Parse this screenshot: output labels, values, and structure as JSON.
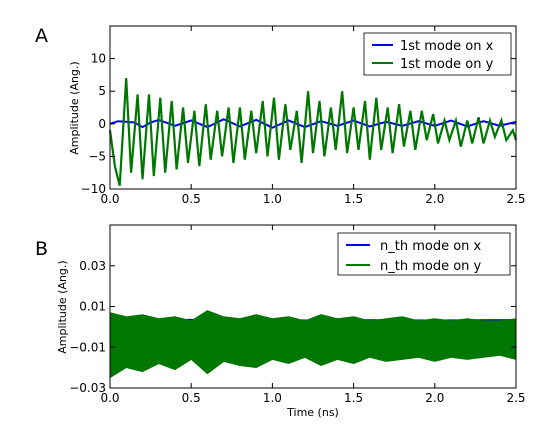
{
  "chart_data": [
    {
      "type": "line",
      "panel_label": "A",
      "title": "",
      "xlabel": "",
      "ylabel": "Amplitude (Ang.)",
      "xlim": [
        0.0,
        2.5
      ],
      "ylim": [
        -10,
        15
      ],
      "x_ticks": [
        0.0,
        0.5,
        1.0,
        1.5,
        2.0,
        2.5
      ],
      "x_tick_labels": [
        "0.0",
        "0.5",
        "1.0",
        "1.5",
        "2.0",
        "2.5"
      ],
      "y_ticks": [
        -10,
        -5,
        0,
        5,
        10
      ],
      "y_tick_labels": [
        "−10",
        "−5",
        "0",
        "5",
        "10"
      ],
      "grid": false,
      "legend_position": "top-right",
      "series": [
        {
          "name": "1st mode on x",
          "color": "#0000ff",
          "x": [
            0.0,
            0.05,
            0.1,
            0.15,
            0.2,
            0.25,
            0.3,
            0.4,
            0.5,
            0.6,
            0.7,
            0.8,
            0.9,
            1.0,
            1.1,
            1.2,
            1.3,
            1.4,
            1.5,
            1.6,
            1.7,
            1.8,
            1.9,
            2.0,
            2.1,
            2.2,
            2.3,
            2.4,
            2.5
          ],
          "values": [
            0.0,
            0.4,
            0.3,
            0.2,
            -0.5,
            0.2,
            0.6,
            -0.3,
            0.5,
            -0.5,
            0.7,
            -0.4,
            0.6,
            -0.6,
            0.5,
            -0.5,
            0.4,
            -0.3,
            0.5,
            -0.4,
            0.3,
            -0.3,
            0.4,
            -0.3,
            0.5,
            -0.4,
            0.4,
            -0.3,
            0.3
          ]
        },
        {
          "name": "1st mode on y",
          "color": "#007700",
          "x": [
            0.0,
            0.03,
            0.06,
            0.1,
            0.13,
            0.17,
            0.2,
            0.24,
            0.27,
            0.31,
            0.34,
            0.38,
            0.41,
            0.45,
            0.48,
            0.52,
            0.55,
            0.59,
            0.62,
            0.66,
            0.69,
            0.73,
            0.76,
            0.8,
            0.83,
            0.87,
            0.9,
            0.94,
            0.97,
            1.01,
            1.04,
            1.08,
            1.11,
            1.15,
            1.18,
            1.22,
            1.25,
            1.29,
            1.32,
            1.36,
            1.39,
            1.43,
            1.46,
            1.5,
            1.53,
            1.57,
            1.6,
            1.64,
            1.67,
            1.71,
            1.74,
            1.78,
            1.81,
            1.85,
            1.88,
            1.92,
            1.95,
            1.99,
            2.02,
            2.06,
            2.09,
            2.13,
            2.16,
            2.2,
            2.23,
            2.27,
            2.3,
            2.34,
            2.37,
            2.41,
            2.44,
            2.48,
            2.5
          ],
          "values": [
            -1.0,
            -6.5,
            -9.5,
            7.0,
            -7.5,
            4.5,
            -8.5,
            4.5,
            -8.0,
            4.0,
            -7.5,
            3.5,
            -7.0,
            2.5,
            -6.0,
            2.0,
            -6.5,
            3.0,
            -5.5,
            2.0,
            -5.0,
            2.5,
            -6.0,
            2.5,
            -5.5,
            2.0,
            -4.5,
            3.5,
            -5.0,
            4.0,
            -5.5,
            3.0,
            -4.0,
            2.0,
            -6.0,
            5.0,
            -4.5,
            3.5,
            -5.0,
            2.5,
            -4.0,
            5.0,
            -4.5,
            2.5,
            -4.0,
            3.5,
            -5.5,
            4.0,
            -4.0,
            2.5,
            -4.5,
            3.0,
            -3.5,
            2.0,
            -4.0,
            2.0,
            -2.5,
            1.5,
            -3.0,
            0.5,
            -2.5,
            0.5,
            -3.5,
            0.5,
            -3.0,
            1.0,
            -3.0,
            0.5,
            -2.0,
            0.5,
            -2.5,
            -1.0,
            -2.5
          ]
        }
      ]
    },
    {
      "type": "line",
      "panel_label": "B",
      "title": "",
      "xlabel": "Time (ns)",
      "ylabel": "Amplitude (Ang.)",
      "xlim": [
        0.0,
        2.5
      ],
      "ylim": [
        -0.03,
        0.05
      ],
      "x_ticks": [
        0.0,
        0.5,
        1.0,
        1.5,
        2.0,
        2.5
      ],
      "x_tick_labels": [
        "0.0",
        "0.5",
        "1.0",
        "1.5",
        "2.0",
        "2.5"
      ],
      "y_ticks": [
        -0.03,
        -0.01,
        0.01,
        0.03
      ],
      "y_tick_labels": [
        "−0.03",
        "−0.01",
        "0.01",
        "0.03"
      ],
      "grid": false,
      "legend_position": "top-right",
      "series": [
        {
          "name": "n_th mode on x",
          "color": "#0000ff",
          "x": [
            0.0,
            0.25,
            0.5,
            0.75,
            1.0,
            1.25,
            1.5,
            1.75,
            2.0,
            2.25,
            2.5
          ],
          "values_upper": [
            0.0035,
            0.0035,
            0.0037,
            0.0033,
            0.0035,
            0.0034,
            0.0036,
            0.0035,
            0.0034,
            0.0035,
            0.0036
          ],
          "values_lower": [
            -0.0035,
            -0.0034,
            -0.0036,
            -0.0035,
            -0.0034,
            -0.0035,
            -0.0033,
            -0.0035,
            -0.0034,
            -0.0035,
            -0.0035
          ]
        },
        {
          "name": "n_th mode on y",
          "color": "#007700",
          "x": [
            0.0,
            0.1,
            0.2,
            0.3,
            0.4,
            0.5,
            0.6,
            0.7,
            0.8,
            0.9,
            1.0,
            1.1,
            1.2,
            1.3,
            1.4,
            1.5,
            1.6,
            1.7,
            1.8,
            1.9,
            2.0,
            2.1,
            2.2,
            2.3,
            2.4,
            2.5
          ],
          "values_upper": [
            0.007,
            0.005,
            0.006,
            0.004,
            0.005,
            0.003,
            0.008,
            0.005,
            0.004,
            0.006,
            0.004,
            0.005,
            0.003,
            0.006,
            0.004,
            0.005,
            0.003,
            0.004,
            0.005,
            0.003,
            0.004,
            0.003,
            0.004,
            0.003,
            0.003,
            0.004
          ],
          "values_lower": [
            -0.025,
            -0.02,
            -0.022,
            -0.018,
            -0.021,
            -0.016,
            -0.023,
            -0.017,
            -0.019,
            -0.02,
            -0.016,
            -0.018,
            -0.015,
            -0.019,
            -0.016,
            -0.018,
            -0.015,
            -0.017,
            -0.016,
            -0.015,
            -0.017,
            -0.015,
            -0.016,
            -0.015,
            -0.014,
            -0.016
          ]
        }
      ]
    }
  ]
}
